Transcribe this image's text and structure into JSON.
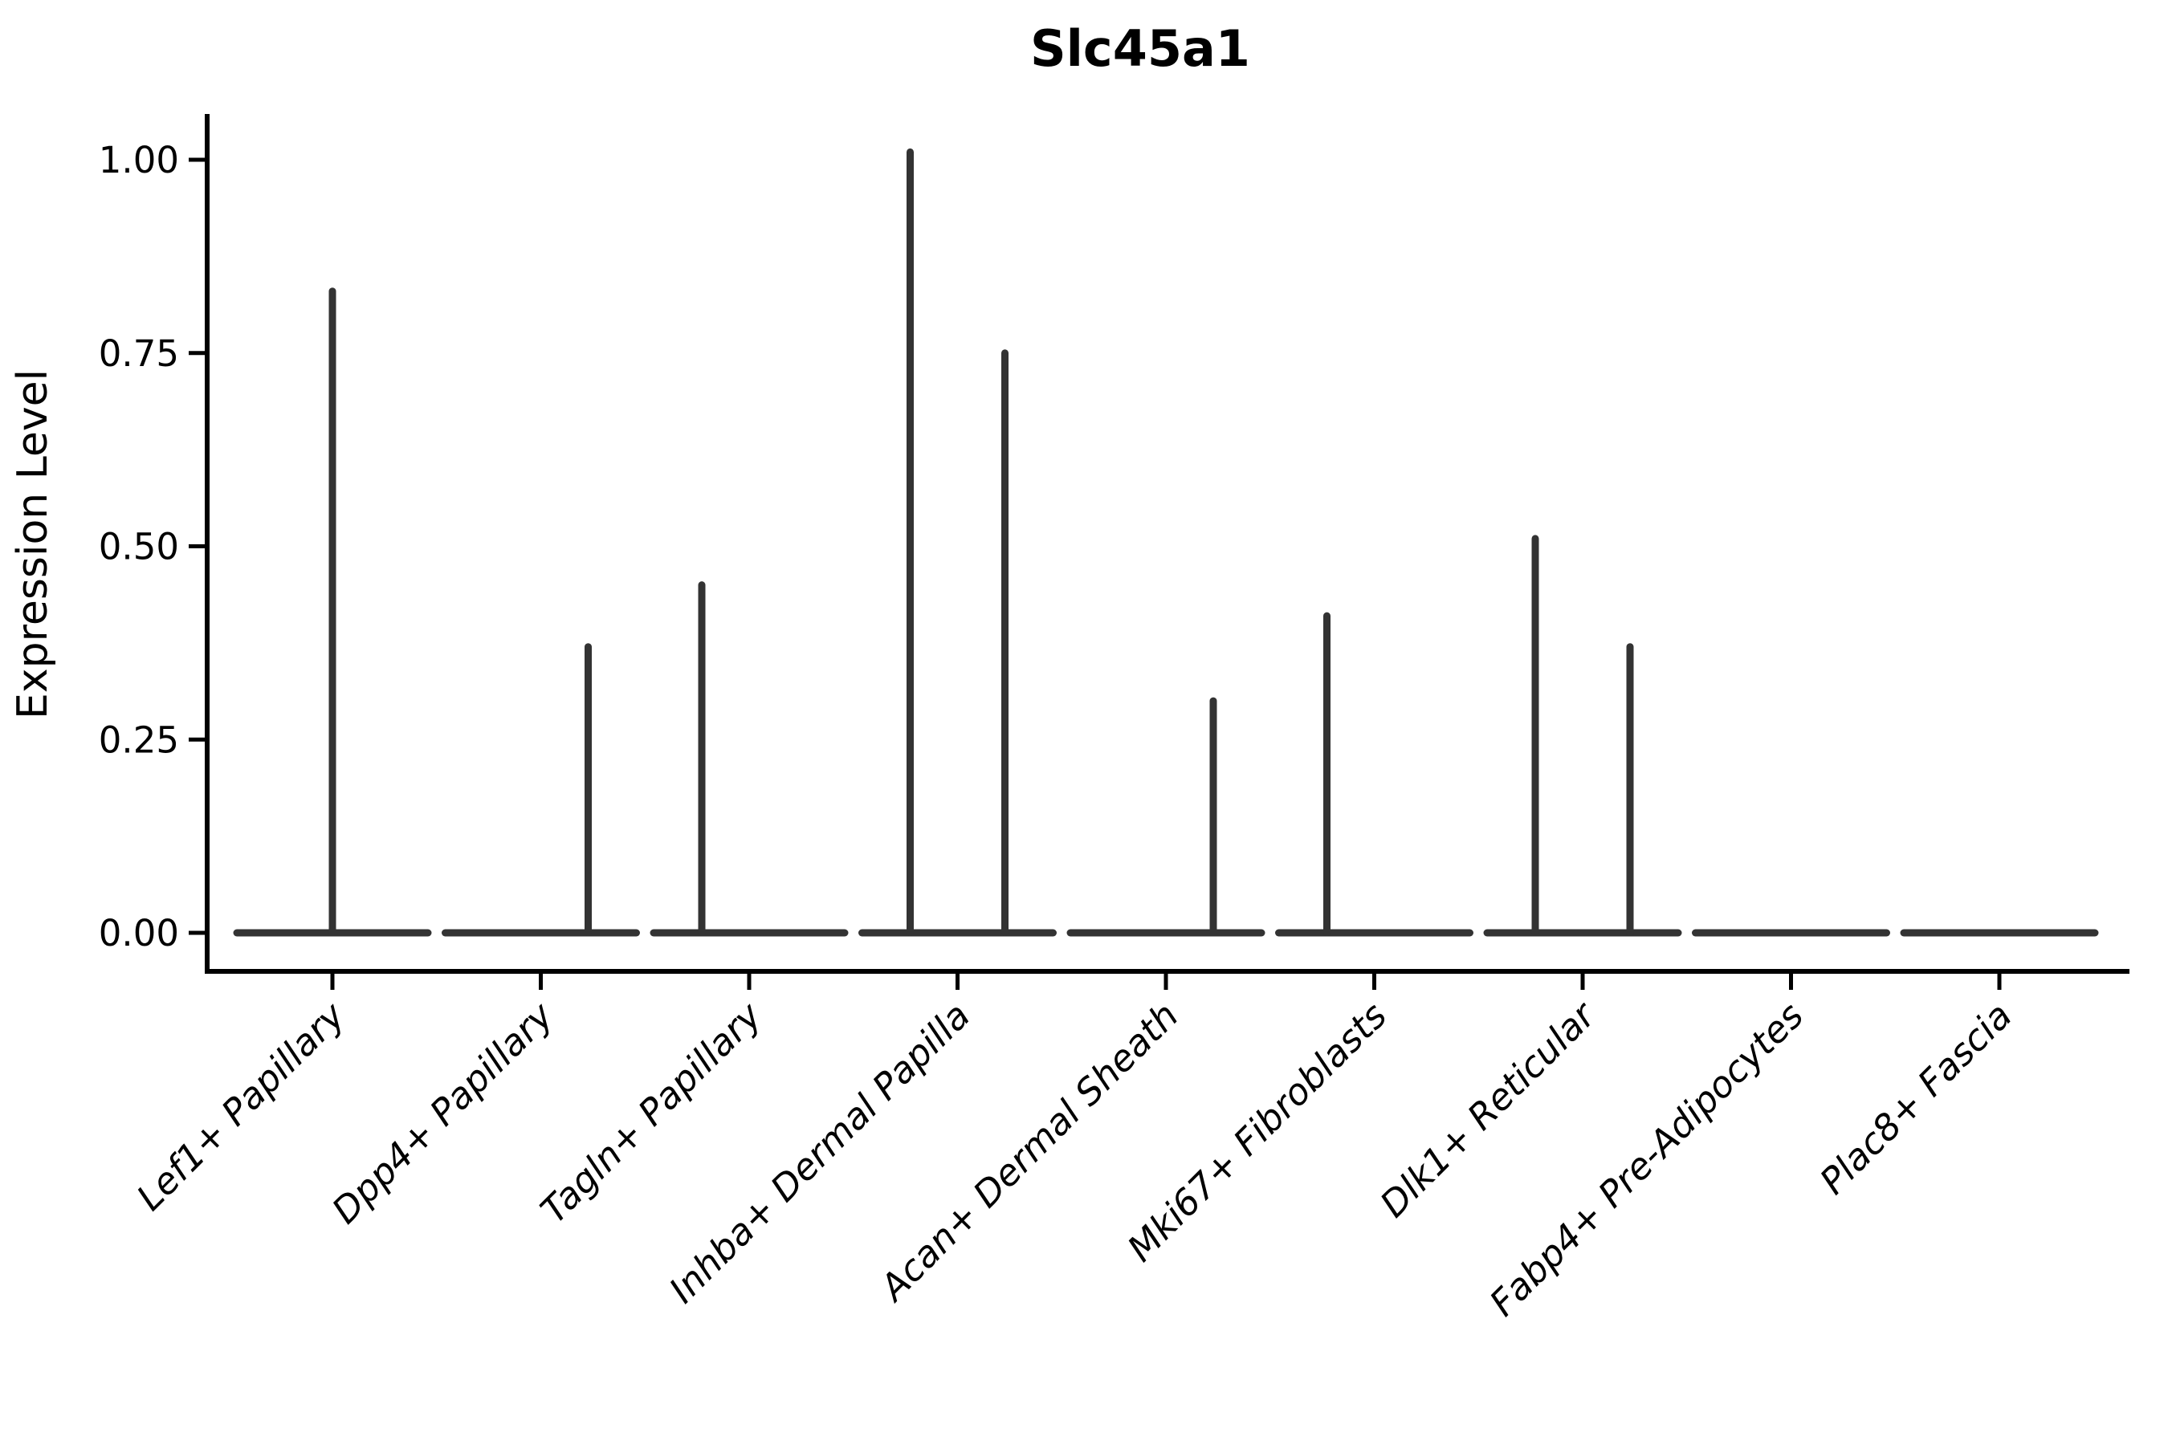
{
  "title": "Slc45a1",
  "y_axis": {
    "label": "Expression Level",
    "tick_labels": [
      "0.00",
      "0.25",
      "0.50",
      "0.75",
      "1.00"
    ],
    "tick_values": [
      0,
      0.25,
      0.5,
      0.75,
      1.0
    ]
  },
  "x_axis": {
    "categories": [
      "Lef1+ Papillary",
      "Dpp4+ Papillary",
      "Tagln+ Papillary",
      "Inhba+ Dermal Papilla",
      "Acan+ Dermal Sheath",
      "Mki67+ Fibroblasts",
      "Dlk1+ Reticular",
      "Fabp4+ Pre-Adipocytes",
      "Plac8+ Fascia"
    ]
  },
  "chart_data": {
    "type": "violin",
    "title": "Slc45a1",
    "xlabel": "",
    "ylabel": "Expression Level",
    "ylim": [
      -0.05,
      1.06
    ],
    "yticks": [
      0,
      0.25,
      0.5,
      0.75,
      1.0
    ],
    "ytick_labels": [
      "0.00",
      "0.25",
      "0.50",
      "0.75",
      "1.00"
    ],
    "grid": false,
    "legend": "none",
    "categories": [
      "Lef1+ Papillary",
      "Dpp4+ Papillary",
      "Tagln+ Papillary",
      "Inhba+ Dermal Papilla",
      "Acan+ Dermal Sheath",
      "Mki67+ Fibroblasts",
      "Dlk1+ Reticular",
      "Fabp4+ Pre-Adipocytes",
      "Plac8+ Fascia"
    ],
    "description": "Most cells have expression 0 (flat violin at baseline); thin spikes mark the maximum expression tail of each sub-violin. side: center = single full-width violin, left/right = dodged sub-violins.",
    "violins": [
      {
        "category": "Lef1+ Papillary",
        "spikes": [
          {
            "side": "center",
            "max": 0.83
          }
        ]
      },
      {
        "category": "Dpp4+ Papillary",
        "spikes": [
          {
            "side": "right",
            "max": 0.37
          }
        ]
      },
      {
        "category": "Tagln+ Papillary",
        "spikes": [
          {
            "side": "left",
            "max": 0.45
          }
        ]
      },
      {
        "category": "Inhba+ Dermal Papilla",
        "spikes": [
          {
            "side": "left",
            "max": 1.01
          },
          {
            "side": "right",
            "max": 0.75
          }
        ]
      },
      {
        "category": "Acan+ Dermal Sheath",
        "spikes": [
          {
            "side": "right",
            "max": 0.3
          }
        ]
      },
      {
        "category": "Mki67+ Fibroblasts",
        "spikes": [
          {
            "side": "left",
            "max": 0.41
          }
        ]
      },
      {
        "category": "Dlk1+ Reticular",
        "spikes": [
          {
            "side": "left",
            "max": 0.51
          },
          {
            "side": "right",
            "max": 0.37
          }
        ]
      },
      {
        "category": "Fabp4+ Pre-Adipocytes",
        "spikes": []
      },
      {
        "category": "Plac8+ Fascia",
        "spikes": []
      }
    ]
  },
  "style": {
    "violin_color": "#333333",
    "axis_color": "#000000",
    "text_color": "#000000",
    "background_color": "#ffffff"
  }
}
